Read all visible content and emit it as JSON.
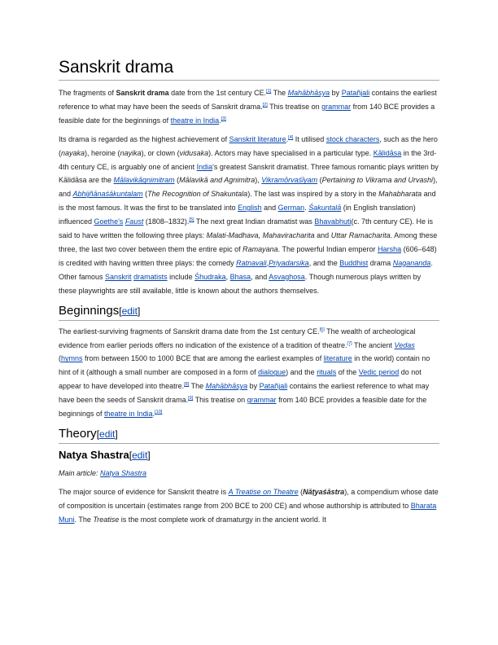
{
  "title": "Sanskrit drama",
  "p1": {
    "t1": "The fragments of ",
    "b1": "Sanskrit drama",
    "t2": " date from the 1st century CE.",
    "r1": "[1]",
    "t3": " The ",
    "l1": "Mahābhāṣya",
    "t4": " by ",
    "l2": "Patañjali",
    "t5": " contains the earliest reference to what may have been the seeds of Sanskrit drama.",
    "r2": "[2]",
    "t6": " This treatise on ",
    "l3": "grammar",
    "t7": " from 140 BCE provides a feasible date for the beginnings of ",
    "l4": "theatre in India",
    "t8": ".",
    "r3": "[3]"
  },
  "p2": {
    "t1": "Its drama is regarded as the highest achievement of ",
    "l1": "Sanskrit literature",
    "t2": ".",
    "r1": "[4]",
    "t3": " It utilised ",
    "l2": "stock characters",
    "t4": ", such as the hero (",
    "i1": "nayaka",
    "t5": "), heroine (",
    "i2": "nayika",
    "t6": "), or clown (",
    "i3": "vidusaka",
    "t7": "). Actors may have specialised in a particular type. ",
    "l3": "Kālidāsa",
    "t8": " in the 3rd-4th century CE, is arguably one of ancient ",
    "l4": "India",
    "t9": "'s greatest Sanskrit dramatist. Three famous romantic plays written by Kālidāsa are the ",
    "l5": "Mālavikāgnimitram",
    "t10": " (",
    "i4": "Mālavikā and Agnimitra",
    "t11": "), ",
    "l6": "Vikramōrvaśīyam",
    "t12": " (",
    "i5": "Pertaining to Vikrama and Urvashi",
    "t13": "), and ",
    "l7": "Abhijñānaśākuntalam",
    "t14": " (",
    "i6": "The Recognition of Shakuntala",
    "t15": "). The last was inspired by a story in the ",
    "i7": "Mahabharata",
    "t16": " and is the most famous. It was the first to be translated into ",
    "l8": "English",
    "t17": " and ",
    "l9": "German",
    "t18": ". ",
    "l10": "Śakuntalā",
    "t19": " (in English translation) influenced ",
    "l11": "Goethe's",
    "t20": " ",
    "l12": "Faust",
    "t21": " (1808–1832).",
    "r2": "[5]",
    "t22": " The next great Indian dramatist was ",
    "l13": "Bhavabhuti",
    "t23": "(c. 7th century CE). He is said to have written the following three plays: ",
    "i8": "Malati-Madhava, Mahaviracharita",
    "t24": " and ",
    "i9": "Uttar Ramacharita",
    "t25": ". Among these three, the last two cover between them the entire epic of ",
    "i10": "Ramayana",
    "t26": ". The powerful Indian emperor ",
    "l14": "Harsha",
    "t27": " (606–648) is credited with having written three plays: the comedy ",
    "l15": "Ratnavali",
    "t28": ",",
    "l16": "Priyadarsika",
    "t29": ", and the ",
    "l17": "Buddhist",
    "t30": " drama ",
    "l18": "Nagananda",
    "t31": ". Other famous ",
    "l19": "Sanskrit",
    "t32": " ",
    "l20": "dramatists",
    "t33": " include ",
    "l21": "Śhudraka",
    "t34": ", ",
    "l22": "Bhasa",
    "t35": ", and ",
    "l23": "Asvaghosa",
    "t36": ". Though numerous plays written by these playwrights are still available, little is known about the authors themselves."
  },
  "h_beginnings": {
    "label": "Beginnings",
    "edit_open": "[",
    "edit": "edit",
    "edit_close": "]"
  },
  "p3": {
    "t1": "The earliest-surviving fragments of Sanskrit drama date from the 1st century CE.",
    "r1": "[6]",
    "t2": " The wealth of archeological evidence from earlier periods offers no indication of the existence of a tradition of theatre.",
    "r2": "[7]",
    "t3": " The ancient ",
    "l1": "Vedas",
    "t4": " (",
    "l2": "hymns",
    "t5": " from between 1500 to 1000 BCE that are among the earliest examples of ",
    "l3": "literature",
    "t6": " in the world) contain no hint of it (although a small number are composed in a form of ",
    "l4": "dialogue",
    "t7": ") and the ",
    "l5": "rituals",
    "t8": " of the ",
    "l6": "Vedic period",
    "t9": " do not appear to have developed into theatre.",
    "r3": "[8]",
    "t10": " The ",
    "l7": "Mahābhāṣya",
    "t11": " by ",
    "l8": "Patañjali",
    "t12": " contains the earliest reference to what may have been the seeds of Sanskrit drama.",
    "r4": "[9]",
    "t13": " This treatise on ",
    "l9": "grammar",
    "t14": " from 140 BCE provides a feasible date for the beginnings of ",
    "l10": "theatre in India",
    "t15": ".",
    "r5": "[10]"
  },
  "h_theory": {
    "label": "Theory",
    "edit_open": "[",
    "edit": "edit",
    "edit_close": "]"
  },
  "h_natya": {
    "label": "Natya Shastra",
    "edit_open": "[",
    "edit": "edit",
    "edit_close": "]"
  },
  "hatnote": {
    "prefix": "Main article: ",
    "link": "Natya Shastra"
  },
  "p4": {
    "t1": "The major source of evidence for Sanskrit theatre is ",
    "l1": "A Treatise on Theatre",
    "t2": " (",
    "i1": "Nāṭyaśāstra",
    "t3": "), a compendium whose date of composition is uncertain (estimates range from 200 BCE to 200 CE) and whose authorship is attributed to ",
    "l2": "Bharata Muni",
    "t4": ". The ",
    "i2": "Treatise",
    "t5": " is the most complete work of dramaturgy in the ancient world. It"
  }
}
